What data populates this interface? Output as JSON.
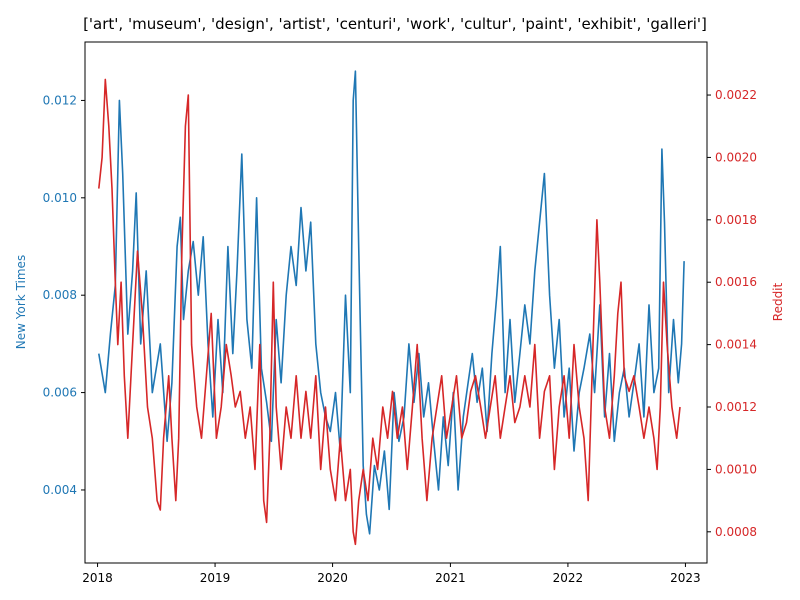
{
  "chart_data": {
    "type": "line",
    "title": "['art', 'museum', 'design', 'artist', 'centuri', 'work', 'cultur', 'paint', 'exhibit', 'galleri']",
    "xlabel": "",
    "x_ticks": [
      "2018",
      "2019",
      "2020",
      "2021",
      "2022",
      "2023"
    ],
    "xlim": [
      "2017-11-23",
      "2023-03-09"
    ],
    "left_axis": {
      "label": "New York Times",
      "color": "#1f77b4",
      "ylim": [
        0.0025,
        0.0132
      ],
      "ticks": [
        "0.004",
        "0.006",
        "0.008",
        "0.010",
        "0.012"
      ]
    },
    "right_axis": {
      "label": "Reddit",
      "color": "#d62728",
      "ylim": [
        0.0007,
        0.00237
      ],
      "ticks": [
        "0.0008",
        "0.0010",
        "0.0012",
        "0.0014",
        "0.0016",
        "0.0018",
        "0.0020",
        "0.0022"
      ]
    },
    "series": [
      {
        "name": "New York Times",
        "axis": "left",
        "color": "#1f77b4",
        "points": [
          [
            "2018-01-05",
            0.0068
          ],
          [
            "2018-01-25",
            0.006
          ],
          [
            "2018-02-10",
            0.0072
          ],
          [
            "2018-02-25",
            0.0082
          ],
          [
            "2018-03-10",
            0.012
          ],
          [
            "2018-03-20",
            0.0105
          ],
          [
            "2018-04-05",
            0.0072
          ],
          [
            "2018-04-20",
            0.0085
          ],
          [
            "2018-05-01",
            0.0101
          ],
          [
            "2018-05-15",
            0.007
          ],
          [
            "2018-06-01",
            0.0085
          ],
          [
            "2018-06-20",
            0.006
          ],
          [
            "2018-07-15",
            0.007
          ],
          [
            "2018-08-05",
            0.005
          ],
          [
            "2018-08-20",
            0.0062
          ],
          [
            "2018-09-05",
            0.009
          ],
          [
            "2018-09-15",
            0.0096
          ],
          [
            "2018-09-25",
            0.0075
          ],
          [
            "2018-10-10",
            0.0085
          ],
          [
            "2018-10-25",
            0.0091
          ],
          [
            "2018-11-10",
            0.008
          ],
          [
            "2018-11-25",
            0.0092
          ],
          [
            "2018-12-10",
            0.007
          ],
          [
            "2018-12-25",
            0.0055
          ],
          [
            "2019-01-10",
            0.0075
          ],
          [
            "2019-01-25",
            0.006
          ],
          [
            "2019-02-10",
            0.009
          ],
          [
            "2019-02-25",
            0.0068
          ],
          [
            "2019-03-10",
            0.0085
          ],
          [
            "2019-03-25",
            0.0109
          ],
          [
            "2019-04-10",
            0.0075
          ],
          [
            "2019-04-25",
            0.0065
          ],
          [
            "2019-05-10",
            0.01
          ],
          [
            "2019-05-25",
            0.0065
          ],
          [
            "2019-06-10",
            0.0058
          ],
          [
            "2019-06-25",
            0.005
          ],
          [
            "2019-07-10",
            0.0075
          ],
          [
            "2019-07-25",
            0.0062
          ],
          [
            "2019-08-10",
            0.008
          ],
          [
            "2019-08-25",
            0.009
          ],
          [
            "2019-09-10",
            0.0082
          ],
          [
            "2019-09-25",
            0.0098
          ],
          [
            "2019-10-10",
            0.0085
          ],
          [
            "2019-10-25",
            0.0095
          ],
          [
            "2019-11-10",
            0.007
          ],
          [
            "2019-11-25",
            0.006
          ],
          [
            "2019-12-10",
            0.0055
          ],
          [
            "2019-12-25",
            0.0052
          ],
          [
            "2020-01-10",
            0.006
          ],
          [
            "2020-01-25",
            0.0048
          ],
          [
            "2020-02-10",
            0.008
          ],
          [
            "2020-02-25",
            0.006
          ],
          [
            "2020-03-05",
            0.012
          ],
          [
            "2020-03-12",
            0.0126
          ],
          [
            "2020-03-22",
            0.009
          ],
          [
            "2020-04-05",
            0.0045
          ],
          [
            "2020-04-15",
            0.0035
          ],
          [
            "2020-04-25",
            0.0031
          ],
          [
            "2020-05-10",
            0.0045
          ],
          [
            "2020-05-25",
            0.004
          ],
          [
            "2020-06-10",
            0.0048
          ],
          [
            "2020-06-25",
            0.0036
          ],
          [
            "2020-07-10",
            0.006
          ],
          [
            "2020-07-25",
            0.005
          ],
          [
            "2020-08-10",
            0.0055
          ],
          [
            "2020-08-25",
            0.007
          ],
          [
            "2020-09-10",
            0.0058
          ],
          [
            "2020-09-25",
            0.0068
          ],
          [
            "2020-10-10",
            0.0055
          ],
          [
            "2020-10-25",
            0.0062
          ],
          [
            "2020-11-10",
            0.005
          ],
          [
            "2020-11-25",
            0.004
          ],
          [
            "2020-12-10",
            0.0055
          ],
          [
            "2020-12-25",
            0.0045
          ],
          [
            "2021-01-10",
            0.006
          ],
          [
            "2021-01-25",
            0.004
          ],
          [
            "2021-02-10",
            0.0055
          ],
          [
            "2021-02-25",
            0.0062
          ],
          [
            "2021-03-10",
            0.0068
          ],
          [
            "2021-03-25",
            0.0058
          ],
          [
            "2021-04-10",
            0.0065
          ],
          [
            "2021-04-25",
            0.0052
          ],
          [
            "2021-05-10",
            0.0068
          ],
          [
            "2021-05-25",
            0.008
          ],
          [
            "2021-06-05",
            0.009
          ],
          [
            "2021-06-20",
            0.006
          ],
          [
            "2021-07-05",
            0.0075
          ],
          [
            "2021-07-20",
            0.0058
          ],
          [
            "2021-08-05",
            0.0068
          ],
          [
            "2021-08-20",
            0.0078
          ],
          [
            "2021-09-05",
            0.007
          ],
          [
            "2021-09-20",
            0.0085
          ],
          [
            "2021-10-05",
            0.0095
          ],
          [
            "2021-10-20",
            0.0105
          ],
          [
            "2021-11-05",
            0.008
          ],
          [
            "2021-11-20",
            0.0065
          ],
          [
            "2021-12-05",
            0.0075
          ],
          [
            "2021-12-20",
            0.0055
          ],
          [
            "2022-01-05",
            0.0065
          ],
          [
            "2022-01-20",
            0.0048
          ],
          [
            "2022-02-05",
            0.006
          ],
          [
            "2022-02-20",
            0.0065
          ],
          [
            "2022-03-10",
            0.0072
          ],
          [
            "2022-03-25",
            0.006
          ],
          [
            "2022-04-10",
            0.0078
          ],
          [
            "2022-04-25",
            0.0055
          ],
          [
            "2022-05-10",
            0.0068
          ],
          [
            "2022-05-25",
            0.005
          ],
          [
            "2022-06-10",
            0.006
          ],
          [
            "2022-06-25",
            0.0065
          ],
          [
            "2022-07-10",
            0.0055
          ],
          [
            "2022-07-25",
            0.0062
          ],
          [
            "2022-08-10",
            0.007
          ],
          [
            "2022-08-25",
            0.0055
          ],
          [
            "2022-09-10",
            0.0078
          ],
          [
            "2022-09-25",
            0.006
          ],
          [
            "2022-10-10",
            0.0065
          ],
          [
            "2022-10-20",
            0.011
          ],
          [
            "2022-10-28",
            0.0095
          ],
          [
            "2022-11-10",
            0.006
          ],
          [
            "2022-11-25",
            0.0075
          ],
          [
            "2022-12-10",
            0.0062
          ],
          [
            "2022-12-20",
            0.007
          ],
          [
            "2022-12-28",
            0.0087
          ]
        ]
      },
      {
        "name": "Reddit",
        "axis": "right",
        "color": "#d62728",
        "points": [
          [
            "2018-01-05",
            0.0019
          ],
          [
            "2018-01-15",
            0.002
          ],
          [
            "2018-01-25",
            0.00225
          ],
          [
            "2018-02-05",
            0.0021
          ],
          [
            "2018-02-15",
            0.0019
          ],
          [
            "2018-02-25",
            0.0016
          ],
          [
            "2018-03-05",
            0.0014
          ],
          [
            "2018-03-15",
            0.0016
          ],
          [
            "2018-03-25",
            0.0013
          ],
          [
            "2018-04-05",
            0.0011
          ],
          [
            "2018-04-20",
            0.0014
          ],
          [
            "2018-05-05",
            0.0017
          ],
          [
            "2018-05-20",
            0.0015
          ],
          [
            "2018-06-05",
            0.0012
          ],
          [
            "2018-06-20",
            0.0011
          ],
          [
            "2018-07-05",
            0.0009
          ],
          [
            "2018-07-15",
            0.00087
          ],
          [
            "2018-07-25",
            0.0011
          ],
          [
            "2018-08-10",
            0.0013
          ],
          [
            "2018-08-20",
            0.0011
          ],
          [
            "2018-09-01",
            0.0009
          ],
          [
            "2018-09-10",
            0.0011
          ],
          [
            "2018-09-20",
            0.0017
          ],
          [
            "2018-10-01",
            0.0021
          ],
          [
            "2018-10-10",
            0.0022
          ],
          [
            "2018-10-20",
            0.0014
          ],
          [
            "2018-11-05",
            0.0012
          ],
          [
            "2018-11-20",
            0.0011
          ],
          [
            "2018-12-05",
            0.0013
          ],
          [
            "2018-12-20",
            0.0015
          ],
          [
            "2019-01-05",
            0.0011
          ],
          [
            "2019-01-20",
            0.0012
          ],
          [
            "2019-02-05",
            0.0014
          ],
          [
            "2019-02-20",
            0.0013
          ],
          [
            "2019-03-05",
            0.0012
          ],
          [
            "2019-03-20",
            0.00125
          ],
          [
            "2019-04-05",
            0.0011
          ],
          [
            "2019-04-20",
            0.0012
          ],
          [
            "2019-05-05",
            0.001
          ],
          [
            "2019-05-20",
            0.0014
          ],
          [
            "2019-06-01",
            0.0009
          ],
          [
            "2019-06-10",
            0.00083
          ],
          [
            "2019-06-20",
            0.0011
          ],
          [
            "2019-07-01",
            0.0016
          ],
          [
            "2019-07-10",
            0.0012
          ],
          [
            "2019-07-25",
            0.001
          ],
          [
            "2019-08-10",
            0.0012
          ],
          [
            "2019-08-25",
            0.0011
          ],
          [
            "2019-09-10",
            0.0013
          ],
          [
            "2019-09-25",
            0.0011
          ],
          [
            "2019-10-10",
            0.00125
          ],
          [
            "2019-10-25",
            0.0011
          ],
          [
            "2019-11-10",
            0.0013
          ],
          [
            "2019-11-25",
            0.001
          ],
          [
            "2019-12-10",
            0.0012
          ],
          [
            "2019-12-25",
            0.001
          ],
          [
            "2020-01-10",
            0.0009
          ],
          [
            "2020-01-25",
            0.0011
          ],
          [
            "2020-02-10",
            0.0009
          ],
          [
            "2020-02-25",
            0.001
          ],
          [
            "2020-03-05",
            0.0008
          ],
          [
            "2020-03-12",
            0.00076
          ],
          [
            "2020-03-22",
            0.0009
          ],
          [
            "2020-04-05",
            0.001
          ],
          [
            "2020-04-20",
            0.0009
          ],
          [
            "2020-05-05",
            0.0011
          ],
          [
            "2020-05-20",
            0.001
          ],
          [
            "2020-06-05",
            0.0012
          ],
          [
            "2020-06-20",
            0.0011
          ],
          [
            "2020-07-05",
            0.00125
          ],
          [
            "2020-07-20",
            0.0011
          ],
          [
            "2020-08-05",
            0.0012
          ],
          [
            "2020-08-20",
            0.001
          ],
          [
            "2020-09-05",
            0.0012
          ],
          [
            "2020-09-20",
            0.0014
          ],
          [
            "2020-10-05",
            0.0011
          ],
          [
            "2020-10-20",
            0.0009
          ],
          [
            "2020-11-05",
            0.0011
          ],
          [
            "2020-11-20",
            0.0012
          ],
          [
            "2020-12-05",
            0.0013
          ],
          [
            "2020-12-20",
            0.0011
          ],
          [
            "2021-01-05",
            0.0012
          ],
          [
            "2021-01-20",
            0.0013
          ],
          [
            "2021-02-05",
            0.0011
          ],
          [
            "2021-02-20",
            0.00115
          ],
          [
            "2021-03-05",
            0.00125
          ],
          [
            "2021-03-20",
            0.0013
          ],
          [
            "2021-04-05",
            0.0012
          ],
          [
            "2021-04-20",
            0.0011
          ],
          [
            "2021-05-05",
            0.0012
          ],
          [
            "2021-05-20",
            0.0013
          ],
          [
            "2021-06-05",
            0.0011
          ],
          [
            "2021-06-20",
            0.0012
          ],
          [
            "2021-07-05",
            0.0013
          ],
          [
            "2021-07-20",
            0.00115
          ],
          [
            "2021-08-05",
            0.0012
          ],
          [
            "2021-08-20",
            0.0013
          ],
          [
            "2021-09-05",
            0.0012
          ],
          [
            "2021-09-20",
            0.0014
          ],
          [
            "2021-10-05",
            0.0011
          ],
          [
            "2021-10-20",
            0.00125
          ],
          [
            "2021-11-05",
            0.0013
          ],
          [
            "2021-11-20",
            0.001
          ],
          [
            "2021-12-05",
            0.0012
          ],
          [
            "2021-12-20",
            0.0013
          ],
          [
            "2022-01-05",
            0.0011
          ],
          [
            "2022-01-20",
            0.0014
          ],
          [
            "2022-02-05",
            0.0012
          ],
          [
            "2022-02-20",
            0.0011
          ],
          [
            "2022-03-05",
            0.0009
          ],
          [
            "2022-03-20",
            0.0014
          ],
          [
            "2022-04-01",
            0.0018
          ],
          [
            "2022-04-10",
            0.0016
          ],
          [
            "2022-04-25",
            0.0012
          ],
          [
            "2022-05-10",
            0.0011
          ],
          [
            "2022-05-25",
            0.0013
          ],
          [
            "2022-06-05",
            0.0015
          ],
          [
            "2022-06-15",
            0.0016
          ],
          [
            "2022-06-25",
            0.0013
          ],
          [
            "2022-07-10",
            0.00125
          ],
          [
            "2022-07-25",
            0.0013
          ],
          [
            "2022-08-10",
            0.0012
          ],
          [
            "2022-08-25",
            0.0011
          ],
          [
            "2022-09-10",
            0.0012
          ],
          [
            "2022-09-25",
            0.0011
          ],
          [
            "2022-10-05",
            0.001
          ],
          [
            "2022-10-15",
            0.0012
          ],
          [
            "2022-10-25",
            0.0016
          ],
          [
            "2022-11-05",
            0.0014
          ],
          [
            "2022-11-20",
            0.0012
          ],
          [
            "2022-12-05",
            0.0011
          ],
          [
            "2022-12-15",
            0.0012
          ]
        ]
      }
    ]
  }
}
